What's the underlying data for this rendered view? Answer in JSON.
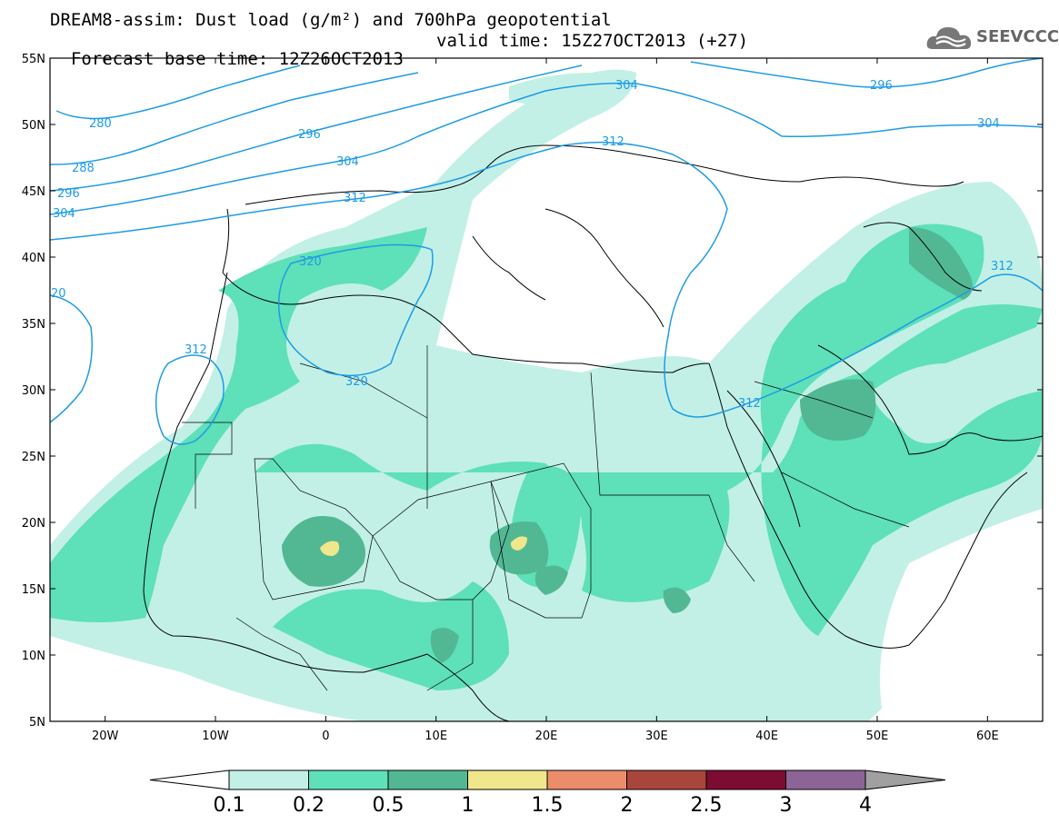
{
  "header": {
    "title_line1": "DREAM8-assim: Dust load (g/m²) and 700hPa geopotential",
    "title_line2_base": "Forecast base time: 12Z26OCT2013",
    "title_line2_valid": "valid time: 15Z27OCT2013 (+27)"
  },
  "logo": {
    "text": "SEEVCCC",
    "icon": "cloud-logo-icon"
  },
  "map": {
    "lon_range": [
      -25,
      65
    ],
    "lat_range": [
      5,
      55
    ],
    "lat_labels": [
      "55N",
      "50N",
      "45N",
      "40N",
      "35N",
      "30N",
      "25N",
      "20N",
      "15N",
      "10N",
      "5N"
    ],
    "lon_labels": [
      "20W",
      "10W",
      "0",
      "10E",
      "20E",
      "30E",
      "40E",
      "50E",
      "60E"
    ],
    "contour_labels": [
      "280",
      "288",
      "296",
      "304",
      "296",
      "304",
      "312",
      "296",
      "304",
      "304",
      "312",
      "320",
      "312",
      "320",
      "312",
      "312",
      "20"
    ]
  },
  "colorbar": {
    "labels": [
      "0.1",
      "0.2",
      "0.5",
      "1",
      "1.5",
      "2",
      "2.5",
      "3",
      "4"
    ],
    "colors": [
      "#ffffff",
      "#c2f0e6",
      "#5ee0b8",
      "#52b894",
      "#f0e68c",
      "#eb8c6a",
      "#a8463c",
      "#7c0c32",
      "#8c6496",
      "#a0a0a0"
    ]
  },
  "colors": {
    "contour": "#1e9be6",
    "border": "#000000"
  }
}
